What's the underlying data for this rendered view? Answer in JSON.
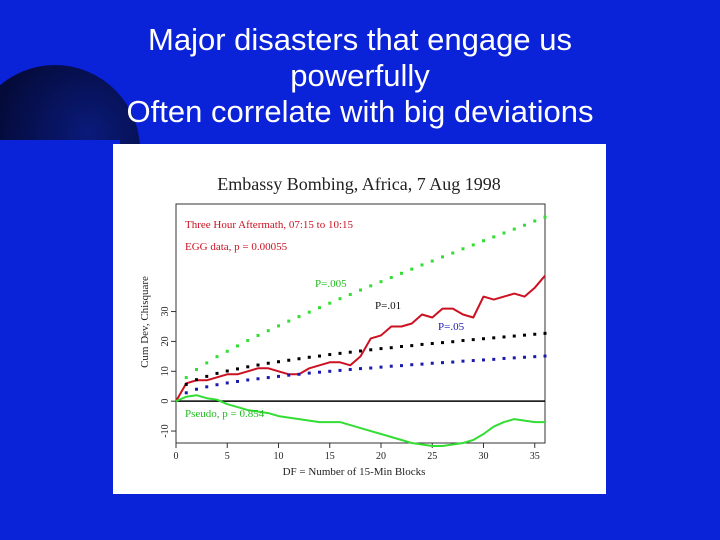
{
  "slide": {
    "title_lines": [
      "Major disasters that engage us",
      "powerfully",
      "Often correlate with big deviations"
    ]
  },
  "colors": {
    "background": "#0a22d8",
    "title_text": "#ffffff",
    "red_series": "#cc1122",
    "green_series": "#33dd33",
    "black_series": "#000000",
    "blue_series": "#1a1ab0"
  },
  "chart_data": {
    "type": "line",
    "title": "Embassy Bombing, Africa, 7 Aug 1998",
    "xlabel": "DF = Number of 15-Min Blocks",
    "ylabel": "Cum Dev, Chisquare",
    "xlim": [
      0,
      36
    ],
    "ylim": [
      -14,
      66
    ],
    "x_ticks": [
      0,
      5,
      10,
      15,
      20,
      25,
      30,
      35
    ],
    "y_ticks": [
      -10,
      0,
      10,
      20,
      30
    ],
    "grid": false,
    "zero_line": true,
    "annotations": {
      "red_label_1": "Three Hour Aftermath, 07:15 to 10:15",
      "red_label_2": "EGG data, p = 0.00055",
      "green_label": "Pseudo, p = 0.854",
      "p005": "P=.005",
      "p01": "P=.01",
      "p05": "P=.05"
    },
    "series": [
      {
        "name": "EGG data",
        "style": "solid",
        "color": "#cc1122",
        "x": [
          0,
          1,
          2,
          3,
          4,
          5,
          6,
          7,
          8,
          9,
          10,
          11,
          12,
          13,
          14,
          15,
          16,
          17,
          18,
          19,
          20,
          21,
          22,
          23,
          24,
          25,
          26,
          27,
          28,
          29,
          30,
          31,
          32,
          33,
          34,
          35,
          36
        ],
        "y": [
          0,
          6,
          7,
          7,
          8,
          9,
          9,
          10,
          11,
          11,
          10,
          9,
          9,
          11,
          12,
          13,
          13,
          12,
          15,
          21,
          22,
          25,
          25,
          26,
          29,
          28,
          31,
          31,
          29,
          28,
          35,
          34,
          35,
          36,
          35,
          38,
          42
        ]
      },
      {
        "name": "Pseudo",
        "style": "solid",
        "color": "#33dd33",
        "x": [
          0,
          1,
          2,
          3,
          4,
          5,
          6,
          7,
          8,
          9,
          10,
          11,
          12,
          13,
          14,
          15,
          16,
          17,
          18,
          19,
          20,
          21,
          22,
          23,
          24,
          25,
          26,
          27,
          28,
          29,
          30,
          31,
          32,
          33,
          34,
          35,
          36
        ],
        "y": [
          0,
          1.5,
          2,
          1,
          0.5,
          -1,
          -2,
          -3,
          -3.5,
          -4,
          -5,
          -5.5,
          -6,
          -6.5,
          -7,
          -7,
          -7,
          -8,
          -9,
          -10,
          -11,
          -12,
          -13,
          -14,
          -14.5,
          -15,
          -15,
          -14.5,
          -14,
          -13,
          -11,
          -8.5,
          -7,
          -6,
          -6.5,
          -7,
          -7
        ]
      },
      {
        "name": "P=.005",
        "style": "dotted",
        "color": "#33dd33",
        "x": [
          1,
          2,
          3,
          4,
          5,
          6,
          7,
          8,
          9,
          10,
          11,
          12,
          13,
          14,
          15,
          16,
          17,
          18,
          19,
          20,
          21,
          22,
          23,
          24,
          25,
          26,
          27,
          28,
          29,
          30,
          31,
          32,
          33,
          34,
          35,
          36
        ],
        "y": [
          7.9,
          10.6,
          12.8,
          14.9,
          16.7,
          18.5,
          20.3,
          22.0,
          23.6,
          25.2,
          26.8,
          28.3,
          29.8,
          31.3,
          32.8,
          34.3,
          35.7,
          37.2,
          38.6,
          40.0,
          41.4,
          42.8,
          44.2,
          45.6,
          46.9,
          48.3,
          49.6,
          51.0,
          52.3,
          53.7,
          55.0,
          56.3,
          57.6,
          58.9,
          60.3,
          61.6
        ]
      },
      {
        "name": "P=.01",
        "style": "dotted",
        "color": "#000000",
        "x": [
          1,
          2,
          3,
          4,
          5,
          6,
          7,
          8,
          9,
          10,
          11,
          12,
          13,
          14,
          15,
          16,
          17,
          18,
          19,
          20,
          21,
          22,
          23,
          24,
          25,
          26,
          27,
          28,
          29,
          30,
          31,
          32,
          33,
          34,
          35,
          36
        ],
        "y": [
          5.6,
          7.2,
          8.3,
          9.3,
          10.1,
          10.8,
          11.5,
          12.1,
          12.7,
          13.2,
          13.7,
          14.2,
          14.7,
          15.1,
          15.6,
          16.0,
          16.4,
          16.8,
          17.2,
          17.6,
          17.9,
          18.3,
          18.6,
          19.0,
          19.3,
          19.6,
          19.9,
          20.3,
          20.6,
          20.9,
          21.2,
          21.5,
          21.8,
          22.1,
          22.4,
          22.7
        ]
      },
      {
        "name": "P=.05",
        "style": "dotted",
        "color": "#1a1ab0",
        "x": [
          1,
          2,
          3,
          4,
          5,
          6,
          7,
          8,
          9,
          10,
          11,
          12,
          13,
          14,
          15,
          16,
          17,
          18,
          19,
          20,
          21,
          22,
          23,
          24,
          25,
          26,
          27,
          28,
          29,
          30,
          31,
          32,
          33,
          34,
          35,
          36
        ],
        "y": [
          2.8,
          4.0,
          4.8,
          5.5,
          6.1,
          6.6,
          7.1,
          7.5,
          7.9,
          8.3,
          8.7,
          9.0,
          9.4,
          9.7,
          10.0,
          10.3,
          10.6,
          10.9,
          11.1,
          11.4,
          11.7,
          11.9,
          12.2,
          12.4,
          12.7,
          12.9,
          13.1,
          13.4,
          13.6,
          13.8,
          14.0,
          14.3,
          14.5,
          14.7,
          14.9,
          15.1
        ]
      }
    ]
  }
}
